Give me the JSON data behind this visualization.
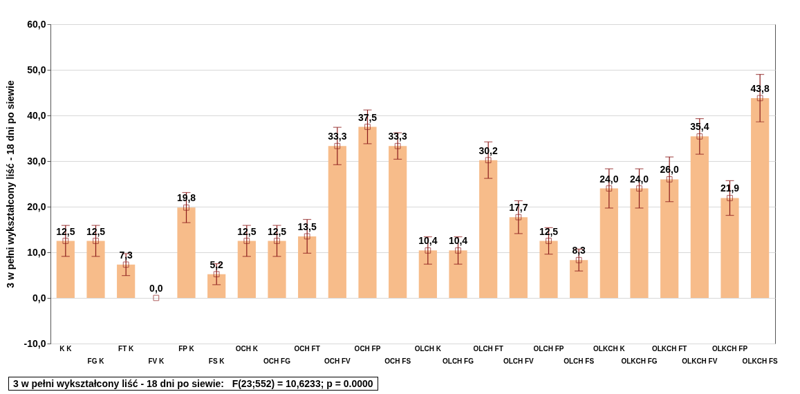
{
  "chart_data": {
    "type": "bar",
    "ylabel": "3 w pełni wykształcony liść - 18 dni po siewie",
    "categories": [
      "K K",
      "FG K",
      "FT K",
      "FV K",
      "FP K",
      "FS K",
      "OCH K",
      "OCH FG",
      "OCH FT",
      "OCH FV",
      "OCH FP",
      "OCH FS",
      "OLCH K",
      "OLCH FG",
      "OLCH FT",
      "OLCH FV",
      "OLCH FP",
      "OLCH FS",
      "OLKCH K",
      "OLKCH FG",
      "OLKCH FT",
      "OLKCH FV",
      "OLKCH FP",
      "OLKCH FS"
    ],
    "series": [
      {
        "color": "#f7bc8a",
        "values": [
          12.5,
          12.5,
          7.3,
          0.0,
          19.8,
          5.2,
          12.5,
          12.5,
          13.5,
          33.3,
          37.5,
          33.3,
          10.4,
          10.4,
          30.2,
          17.7,
          12.5,
          8.3,
          24.0,
          24.0,
          26.0,
          35.4,
          21.9,
          43.8
        ],
        "errors": [
          3.4,
          3.4,
          2.4,
          null,
          3.3,
          2.3,
          3.4,
          3.4,
          3.7,
          4.1,
          3.7,
          2.9,
          3.0,
          3.0,
          4.0,
          3.6,
          2.9,
          2.4,
          4.3,
          4.3,
          4.9,
          3.9,
          3.8,
          5.2
        ],
        "value_labels": [
          "12,5",
          "12,5",
          "7,3",
          "0,0",
          "19,8",
          "5,2",
          "12,5",
          "12,5",
          "13,5",
          "33,3",
          "37,5",
          "33,3",
          "10,4",
          "10,4",
          "30,2",
          "17,7",
          "12,5",
          "8,3",
          "24,0",
          "24,0",
          "26,0",
          "35,4",
          "21,9",
          "43,8"
        ]
      },
      {
        "type": "scatter",
        "color": "#8b1a1a",
        "marker": "square",
        "x": [
          "K K",
          "FG K",
          "FT K",
          "FV K",
          "FP K",
          "FS K",
          "OCH K",
          "OCH FG",
          "OCH FT",
          "OCH FV",
          "OCH FP",
          "OCH FS",
          "OLCH K",
          "OLCH FG",
          "OLCH FT",
          "OLCH FV",
          "OLCH FP",
          "OLCH FS",
          "OLKCH K",
          "OLKCH FG",
          "OLKCH FT",
          "OLKCH FV",
          "OLKCH FP",
          "OLKCH FS"
        ],
        "values": [
          12.5,
          12.5,
          7.3,
          0.0,
          19.8,
          5.2,
          12.5,
          12.5,
          13.5,
          33.3,
          37.5,
          33.3,
          10.4,
          10.4,
          30.2,
          17.7,
          12.5,
          8.3,
          24.0,
          24.0,
          26.0,
          35.4,
          21.9,
          43.8
        ]
      }
    ],
    "ylim": [
      -10,
      60
    ],
    "yticks": [
      {
        "value": -10,
        "label": "-10,0"
      },
      {
        "value": 0,
        "label": "0,0"
      },
      {
        "value": 10,
        "label": "10,0"
      },
      {
        "value": 20,
        "label": "20,0"
      },
      {
        "value": 30,
        "label": "30,0"
      },
      {
        "value": 40,
        "label": "40,0"
      },
      {
        "value": 50,
        "label": "50,0"
      },
      {
        "value": 60,
        "label": "60,0"
      }
    ],
    "grid": "y",
    "annotations": [
      "3 w pełni wykształcony liść - 18 dni po siewie:   F(23;552) = 10,6233; p = 0.0000"
    ]
  }
}
